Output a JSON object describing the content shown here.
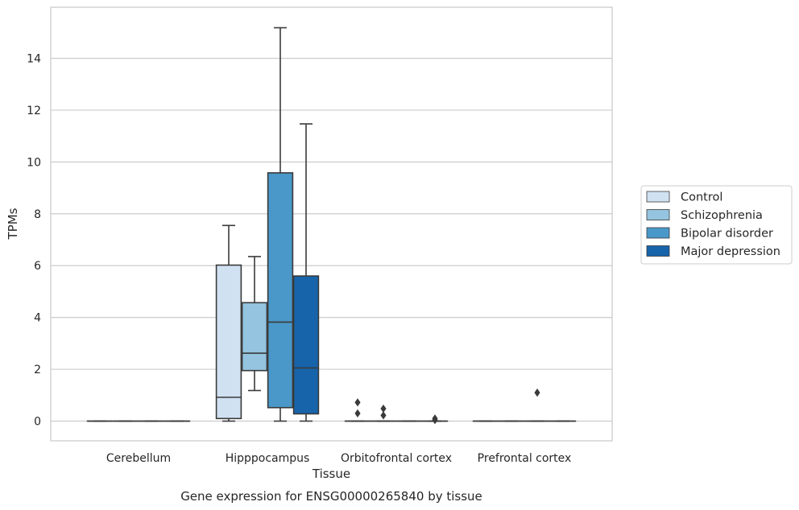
{
  "chart_data": {
    "type": "boxplot",
    "xlabel": "Tissue",
    "ylabel": "TPMs",
    "caption": "Gene expression for ENSG00000265840 by tissue",
    "ylim": [
      -0.75,
      15.5
    ],
    "yticks": [
      0,
      2,
      4,
      6,
      8,
      10,
      12,
      14
    ],
    "grid": true,
    "legend_position": "right",
    "categories": [
      "Cerebellum",
      "Hipppocampus",
      "Orbitofrontal cortex",
      "Prefrontal cortex"
    ],
    "series": [
      {
        "name": "Control",
        "color": "#d0e1f2",
        "boxes": [
          {
            "category": "Cerebellum",
            "whisker_low": 0,
            "q1": 0,
            "median": 0,
            "q3": 0,
            "whisker_high": 0,
            "outliers": []
          },
          {
            "category": "Hipppocampus",
            "whisker_low": 0,
            "q1": 0.1,
            "median": 0.92,
            "q3": 6.02,
            "whisker_high": 7.55,
            "outliers": []
          },
          {
            "category": "Orbitofrontal cortex",
            "whisker_low": 0,
            "q1": 0,
            "median": 0,
            "q3": 0,
            "whisker_high": 0,
            "outliers": [
              0.72,
              0.3
            ]
          },
          {
            "category": "Prefrontal cortex",
            "whisker_low": 0,
            "q1": 0,
            "median": 0,
            "q3": 0,
            "whisker_high": 0,
            "outliers": []
          }
        ]
      },
      {
        "name": "Schizophrenia",
        "color": "#94c4df",
        "boxes": [
          {
            "category": "Cerebellum",
            "whisker_low": 0,
            "q1": 0,
            "median": 0,
            "q3": 0,
            "whisker_high": 0,
            "outliers": []
          },
          {
            "category": "Hipppocampus",
            "whisker_low": 1.18,
            "q1": 1.95,
            "median": 2.62,
            "q3": 4.57,
            "whisker_high": 6.35,
            "outliers": []
          },
          {
            "category": "Orbitofrontal cortex",
            "whisker_low": 0,
            "q1": 0,
            "median": 0,
            "q3": 0,
            "whisker_high": 0,
            "outliers": [
              0.48,
              0.22
            ]
          },
          {
            "category": "Prefrontal cortex",
            "whisker_low": 0,
            "q1": 0,
            "median": 0,
            "q3": 0,
            "whisker_high": 0,
            "outliers": []
          }
        ]
      },
      {
        "name": "Bipolar disorder",
        "color": "#4a98c9",
        "boxes": [
          {
            "category": "Cerebellum",
            "whisker_low": 0,
            "q1": 0,
            "median": 0,
            "q3": 0,
            "whisker_high": 0,
            "outliers": []
          },
          {
            "category": "Hipppocampus",
            "whisker_low": 0,
            "q1": 0.52,
            "median": 3.82,
            "q3": 9.58,
            "whisker_high": 15.18,
            "outliers": []
          },
          {
            "category": "Orbitofrontal cortex",
            "whisker_low": 0,
            "q1": 0,
            "median": 0,
            "q3": 0,
            "whisker_high": 0,
            "outliers": []
          },
          {
            "category": "Prefrontal cortex",
            "whisker_low": 0,
            "q1": 0,
            "median": 0,
            "q3": 0,
            "whisker_high": 0,
            "outliers": [
              1.1
            ]
          }
        ]
      },
      {
        "name": "Major depression",
        "color": "#1764ab",
        "boxes": [
          {
            "category": "Cerebellum",
            "whisker_low": 0,
            "q1": 0,
            "median": 0,
            "q3": 0,
            "whisker_high": 0,
            "outliers": []
          },
          {
            "category": "Hipppocampus",
            "whisker_low": 0,
            "q1": 0.28,
            "median": 2.05,
            "q3": 5.6,
            "whisker_high": 11.47,
            "outliers": []
          },
          {
            "category": "Orbitofrontal cortex",
            "whisker_low": 0,
            "q1": 0,
            "median": 0,
            "q3": 0,
            "whisker_high": 0,
            "outliers": [
              0.1,
              0.04
            ]
          },
          {
            "category": "Prefrontal cortex",
            "whisker_low": 0,
            "q1": 0,
            "median": 0,
            "q3": 0,
            "whisker_high": 0,
            "outliers": []
          }
        ]
      }
    ]
  },
  "colors": {
    "grid": "#cccccc",
    "frame": "#cccccc",
    "box_edge": "#3a3a3a",
    "legend_border": "#cccccc"
  }
}
